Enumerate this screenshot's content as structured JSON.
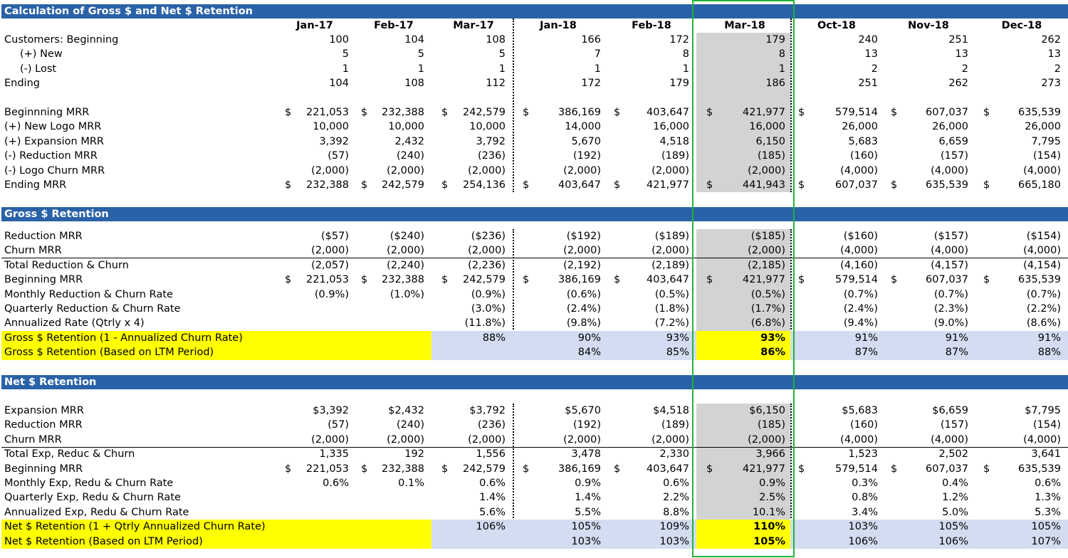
{
  "months": [
    "Jan-17",
    "Feb-17",
    "Mar-17",
    "Jan-18",
    "Feb-18",
    "Mar-18",
    "Oct-18",
    "Nov-18",
    "Dec-18"
  ],
  "highlight_month": "Mar-18",
  "colors": {
    "banner": "#2a62a8",
    "yellow": "#ffff00",
    "light_blue": "#d3dcf0",
    "gray": "#d3d3d3",
    "green": "#22b33a"
  },
  "sections": [
    {
      "title": "Calculation of Gross $ and Net $ Retention",
      "rows": [
        {
          "label": "Customers: Beginning",
          "values": [
            "100",
            "104",
            "108",
            "166",
            "172",
            "179",
            "240",
            "251",
            "262"
          ]
        },
        {
          "label": "(+) New",
          "indent": true,
          "values": [
            "5",
            "5",
            "5",
            "7",
            "8",
            "8",
            "13",
            "13",
            "13"
          ]
        },
        {
          "label": "(-) Lost",
          "indent": true,
          "values": [
            "1",
            "1",
            "1",
            "1",
            "1",
            "1",
            "2",
            "2",
            "2"
          ]
        },
        {
          "label": "Ending",
          "values": [
            "104",
            "108",
            "112",
            "172",
            "179",
            "186",
            "251",
            "262",
            "273"
          ]
        },
        {
          "blank": true
        },
        {
          "label": "Beginnning MRR",
          "dollar": true,
          "values": [
            "221,053",
            "232,388",
            "242,579",
            "386,169",
            "403,647",
            "421,977",
            "579,514",
            "607,037",
            "635,539"
          ]
        },
        {
          "label": "(+) New Logo MRR",
          "values": [
            "10,000",
            "10,000",
            "10,000",
            "14,000",
            "16,000",
            "16,000",
            "26,000",
            "26,000",
            "26,000"
          ]
        },
        {
          "label": "(+) Expansion MRR",
          "values": [
            "3,392",
            "2,432",
            "3,792",
            "5,670",
            "4,518",
            "6,150",
            "5,683",
            "6,659",
            "7,795"
          ]
        },
        {
          "label": "(-) Reduction MRR",
          "values": [
            "(57)",
            "(240)",
            "(236)",
            "(192)",
            "(189)",
            "(185)",
            "(160)",
            "(157)",
            "(154)"
          ]
        },
        {
          "label": "(-) Logo Churn MRR",
          "values": [
            "(2,000)",
            "(2,000)",
            "(2,000)",
            "(2,000)",
            "(2,000)",
            "(2,000)",
            "(4,000)",
            "(4,000)",
            "(4,000)"
          ]
        },
        {
          "label": "Ending MRR",
          "dollar": true,
          "values": [
            "232,388",
            "242,579",
            "254,136",
            "403,647",
            "421,977",
            "441,943",
            "607,037",
            "635,539",
            "665,180"
          ]
        }
      ]
    },
    {
      "title": "Gross $ Retention",
      "rows": [
        {
          "label": "Reduction MRR",
          "values": [
            "($57)",
            "($240)",
            "($236)",
            "($192)",
            "($189)",
            "($185)",
            "($160)",
            "($157)",
            "($154)"
          ]
        },
        {
          "label": "Churn MRR",
          "values": [
            "(2,000)",
            "(2,000)",
            "(2,000)",
            "(2,000)",
            "(2,000)",
            "(2,000)",
            "(4,000)",
            "(4,000)",
            "(4,000)"
          ]
        },
        {
          "label": "Total Reduction & Churn",
          "line_above": true,
          "values": [
            "(2,057)",
            "(2,240)",
            "(2,236)",
            "(2,192)",
            "(2,189)",
            "(2,185)",
            "(4,160)",
            "(4,157)",
            "(4,154)"
          ]
        },
        {
          "label": "Beginning MRR",
          "dollar": true,
          "values": [
            "221,053",
            "232,388",
            "242,579",
            "386,169",
            "403,647",
            "421,977",
            "579,514",
            "607,037",
            "635,539"
          ]
        },
        {
          "label": "Monthly Reduction & Churn Rate",
          "values": [
            "(0.9%)",
            "(1.0%)",
            "(0.9%)",
            "(0.6%)",
            "(0.5%)",
            "(0.5%)",
            "(0.7%)",
            "(0.7%)",
            "(0.7%)"
          ]
        },
        {
          "label": "Quarterly Reduction & Churn Rate",
          "values": [
            "",
            "",
            "(3.0%)",
            "(2.4%)",
            "(1.8%)",
            "(1.7%)",
            "(2.4%)",
            "(2.3%)",
            "(2.2%)"
          ]
        },
        {
          "label": "Annualized Rate (Qtrly x 4)",
          "values": [
            "",
            "",
            "(11.8%)",
            "(9.8%)",
            "(7.2%)",
            "(6.8%)",
            "(9.4%)",
            "(9.0%)",
            "(8.6%)"
          ]
        },
        {
          "label": "Gross $ Retention (1 -  Annualized Churn Rate)",
          "highlight": true,
          "values": [
            "",
            "",
            "88%",
            "90%",
            "93%",
            "93%",
            "91%",
            "91%",
            "91%"
          ]
        },
        {
          "label": "Gross $ Retention (Based on LTM Period)",
          "highlight": true,
          "values": [
            "",
            "",
            "",
            "84%",
            "85%",
            "86%",
            "87%",
            "87%",
            "88%"
          ]
        }
      ]
    },
    {
      "title": "Net $ Retention",
      "rows": [
        {
          "label": "Expansion MRR",
          "values": [
            "$3,392",
            "$2,432",
            "$3,792",
            "$5,670",
            "$4,518",
            "$6,150",
            "$5,683",
            "$6,659",
            "$7,795"
          ]
        },
        {
          "label": "Reduction MRR",
          "values": [
            "(57)",
            "(240)",
            "(236)",
            "(192)",
            "(189)",
            "(185)",
            "(160)",
            "(157)",
            "(154)"
          ]
        },
        {
          "label": "Churn MRR",
          "values": [
            "(2,000)",
            "(2,000)",
            "(2,000)",
            "(2,000)",
            "(2,000)",
            "(2,000)",
            "(4,000)",
            "(4,000)",
            "(4,000)"
          ]
        },
        {
          "label": "Total Exp, Reduc & Churn",
          "line_above": true,
          "values": [
            "1,335",
            "192",
            "1,556",
            "3,478",
            "2,330",
            "3,966",
            "1,523",
            "2,502",
            "3,641"
          ]
        },
        {
          "label": "Beginning MRR",
          "dollar": true,
          "values": [
            "221,053",
            "232,388",
            "242,579",
            "386,169",
            "403,647",
            "421,977",
            "579,514",
            "607,037",
            "635,539"
          ]
        },
        {
          "label": "Monthly Exp, Redu & Churn Rate",
          "values": [
            "0.6%",
            "0.1%",
            "0.6%",
            "0.9%",
            "0.6%",
            "0.9%",
            "0.3%",
            "0.4%",
            "0.6%"
          ]
        },
        {
          "label": "Quarterly Exp, Redu & Churn Rate",
          "values": [
            "",
            "",
            "1.4%",
            "1.4%",
            "2.2%",
            "2.5%",
            "0.8%",
            "1.2%",
            "1.3%"
          ]
        },
        {
          "label": "Annualized Exp, Redu & Churn Rate",
          "values": [
            "",
            "",
            "5.6%",
            "5.5%",
            "8.8%",
            "10.1%",
            "3.4%",
            "5.0%",
            "5.3%"
          ]
        },
        {
          "label": "Net $ Retention (1 +  Qtrly Annualized Churn Rate)",
          "highlight": true,
          "values": [
            "",
            "",
            "106%",
            "105%",
            "109%",
            "110%",
            "103%",
            "105%",
            "105%"
          ]
        },
        {
          "label": "Net $ Retention (Based on LTM Period)",
          "highlight": true,
          "values": [
            "",
            "",
            "",
            "103%",
            "103%",
            "105%",
            "106%",
            "106%",
            "107%"
          ]
        }
      ]
    }
  ]
}
